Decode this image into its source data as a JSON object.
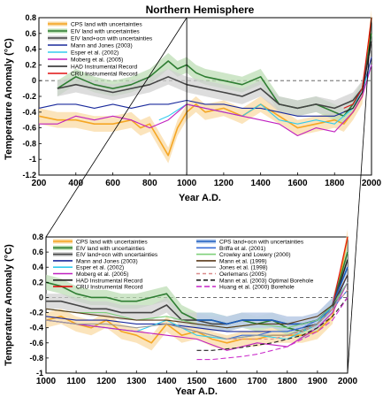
{
  "chart_data": [
    {
      "type": "line",
      "title": "Northern Hemisphere",
      "xlabel": "Year A.D.",
      "ylabel": "Temperature Anomaly (°C)",
      "xlim": [
        200,
        2000
      ],
      "ylim": [
        -1.2,
        0.8
      ],
      "xticks": [
        "200",
        "400",
        "600",
        "800",
        "1000",
        "1200",
        "1400",
        "1600",
        "1800",
        "2000"
      ],
      "yticks": [
        "0.8",
        "0.6",
        "0.4",
        "0.2",
        "0",
        "-0.2",
        "-0.4",
        "-0.6",
        "-0.8",
        "-1",
        "-1.2"
      ],
      "legend_position": "top-left",
      "series": [
        {
          "name": "CPS land with uncertainties",
          "color": "#f5a623",
          "band": "#f9d9a0",
          "x": [
            200,
            300,
            400,
            500,
            600,
            700,
            750,
            800,
            850,
            900,
            950,
            1000,
            1050,
            1100,
            1200,
            1300,
            1400,
            1500,
            1600,
            1700,
            1800,
            1850,
            1900,
            1950,
            2000
          ],
          "y": [
            -0.45,
            -0.5,
            -0.5,
            -0.55,
            -0.55,
            -0.5,
            -0.6,
            -0.55,
            -0.75,
            -0.95,
            -0.6,
            -0.4,
            -0.3,
            -0.4,
            -0.35,
            -0.45,
            -0.3,
            -0.45,
            -0.6,
            -0.55,
            -0.5,
            -0.55,
            -0.4,
            -0.2,
            0.8
          ]
        },
        {
          "name": "EIV land with uncertainties",
          "color": "#2e7d32",
          "band": "#b9dcb0",
          "x": [
            300,
            400,
            500,
            600,
            700,
            800,
            900,
            950,
            1000,
            1050,
            1100,
            1200,
            1300,
            1400,
            1500,
            1600,
            1700,
            1800,
            1850,
            1900,
            1950,
            2000
          ],
          "y": [
            -0.1,
            0.05,
            -0.05,
            -0.1,
            -0.05,
            0.05,
            0.25,
            0.15,
            0.2,
            0.1,
            0.05,
            0.0,
            -0.05,
            0.05,
            -0.3,
            -0.35,
            -0.3,
            -0.4,
            -0.45,
            -0.3,
            -0.1,
            0.6
          ]
        },
        {
          "name": "EIV land+ocn with uncertainties",
          "color": "#444444",
          "band": "#cfcfcf",
          "x": [
            300,
            400,
            500,
            600,
            700,
            800,
            900,
            1000,
            1100,
            1200,
            1300,
            1400,
            1500,
            1600,
            1700,
            1800,
            1900,
            1950,
            2000
          ],
          "y": [
            -0.1,
            -0.05,
            -0.1,
            -0.15,
            -0.1,
            -0.05,
            0.05,
            -0.05,
            -0.1,
            -0.15,
            -0.2,
            -0.1,
            -0.3,
            -0.35,
            -0.3,
            -0.35,
            -0.25,
            -0.1,
            0.5
          ]
        },
        {
          "name": "Mann and Jones (2003)",
          "color": "#1a2a9c",
          "x": [
            200,
            300,
            400,
            500,
            600,
            700,
            800,
            900,
            1000,
            1100,
            1200,
            1300,
            1400,
            1500,
            1600,
            1700,
            1800,
            1900,
            1950,
            2000
          ],
          "y": [
            -0.35,
            -0.3,
            -0.3,
            -0.35,
            -0.3,
            -0.35,
            -0.3,
            -0.3,
            -0.25,
            -0.3,
            -0.3,
            -0.35,
            -0.35,
            -0.4,
            -0.45,
            -0.45,
            -0.45,
            -0.35,
            -0.15,
            0.3
          ]
        },
        {
          "name": "Esper et al. (2002)",
          "color": "#33ccee",
          "x": [
            850,
            900,
            1000,
            1100,
            1200,
            1300,
            1400,
            1500,
            1600,
            1700,
            1800,
            1900,
            1950,
            2000
          ],
          "y": [
            -0.5,
            -0.45,
            -0.3,
            -0.35,
            -0.4,
            -0.45,
            -0.3,
            -0.5,
            -0.55,
            -0.5,
            -0.55,
            -0.35,
            -0.1,
            0.2
          ]
        },
        {
          "name": "Moberg et al. (2005)",
          "color": "#c020c0",
          "x": [
            200,
            300,
            400,
            500,
            600,
            700,
            800,
            900,
            1000,
            1100,
            1200,
            1300,
            1400,
            1500,
            1600,
            1700,
            1800,
            1900,
            1950,
            2000
          ],
          "y": [
            -0.55,
            -0.55,
            -0.45,
            -0.5,
            -0.45,
            -0.5,
            -0.6,
            -0.5,
            -0.3,
            -0.35,
            -0.4,
            -0.45,
            -0.5,
            -0.55,
            -0.7,
            -0.6,
            -0.65,
            -0.4,
            -0.2,
            0.2
          ]
        },
        {
          "name": "HAD Instrumental Record",
          "color": "#222222",
          "x": [
            1850,
            1900,
            1950,
            2000
          ],
          "y": [
            -0.4,
            -0.35,
            -0.15,
            0.5
          ]
        },
        {
          "name": "CRU Instrumental Record",
          "color": "#e01010",
          "x": [
            1850,
            1900,
            1950,
            2000
          ],
          "y": [
            -0.35,
            -0.3,
            -0.1,
            0.8
          ]
        }
      ]
    },
    {
      "type": "line",
      "xlabel": "Year A.D.",
      "ylabel": "Temperature Anomaly (°C)",
      "xlim": [
        1000,
        2000
      ],
      "ylim": [
        -1.0,
        0.8
      ],
      "xticks": [
        "1000",
        "1100",
        "1200",
        "1300",
        "1400",
        "1500",
        "1600",
        "1700",
        "1800",
        "1900",
        "2000"
      ],
      "yticks": [
        "0.8",
        "0.6",
        "0.4",
        "0.2",
        "0",
        "-0.2",
        "-0.4",
        "-0.6",
        "-0.8",
        "-1"
      ],
      "legend_position": "top",
      "series": [
        {
          "name": "CPS land with uncertainties",
          "color": "#f5a623",
          "band": "#f9d9a0",
          "x": [
            1000,
            1050,
            1100,
            1150,
            1200,
            1250,
            1300,
            1350,
            1400,
            1450,
            1500,
            1550,
            1600,
            1650,
            1700,
            1750,
            1800,
            1850,
            1900,
            1950,
            2000
          ],
          "y": [
            -0.3,
            -0.25,
            -0.35,
            -0.4,
            -0.3,
            -0.45,
            -0.5,
            -0.6,
            -0.35,
            -0.5,
            -0.45,
            -0.55,
            -0.6,
            -0.55,
            -0.55,
            -0.5,
            -0.5,
            -0.5,
            -0.45,
            -0.25,
            0.8
          ]
        },
        {
          "name": "EIV land with uncertainties",
          "color": "#2e7d32",
          "band": "#b9dcb0",
          "x": [
            1000,
            1050,
            1100,
            1150,
            1200,
            1250,
            1300,
            1350,
            1400,
            1450,
            1500,
            1550,
            1600,
            1650,
            1700,
            1750,
            1800,
            1850,
            1900,
            1950,
            2000
          ],
          "y": [
            0.2,
            0.15,
            0.05,
            0.0,
            0.0,
            -0.05,
            -0.05,
            0.0,
            0.05,
            -0.2,
            -0.3,
            -0.3,
            -0.35,
            -0.3,
            -0.35,
            -0.3,
            -0.4,
            -0.45,
            -0.35,
            -0.1,
            0.6
          ]
        },
        {
          "name": "EIV land+ocn with uncertainties",
          "color": "#444444",
          "band": "#cfcfcf",
          "x": [
            1000,
            1050,
            1100,
            1150,
            1200,
            1250,
            1300,
            1350,
            1400,
            1450,
            1500,
            1550,
            1600,
            1650,
            1700,
            1750,
            1800,
            1850,
            1900,
            1950,
            2000
          ],
          "y": [
            -0.05,
            -0.05,
            -0.1,
            -0.15,
            -0.15,
            -0.2,
            -0.2,
            -0.2,
            -0.1,
            -0.3,
            -0.3,
            -0.35,
            -0.35,
            -0.3,
            -0.3,
            -0.3,
            -0.35,
            -0.35,
            -0.3,
            -0.1,
            0.5
          ]
        },
        {
          "name": "Mann and Jones (2003)",
          "color": "#1a2a9c",
          "x": [
            1000,
            1100,
            1200,
            1300,
            1400,
            1500,
            1600,
            1700,
            1800,
            1900,
            1950,
            2000
          ],
          "y": [
            -0.25,
            -0.3,
            -0.3,
            -0.35,
            -0.35,
            -0.4,
            -0.45,
            -0.45,
            -0.45,
            -0.35,
            -0.15,
            0.3
          ]
        },
        {
          "name": "Esper et al. (2002)",
          "color": "#33ccee",
          "x": [
            1000,
            1100,
            1200,
            1300,
            1400,
            1500,
            1600,
            1700,
            1800,
            1900,
            1950,
            2000
          ],
          "y": [
            -0.3,
            -0.35,
            -0.4,
            -0.45,
            -0.3,
            -0.5,
            -0.55,
            -0.5,
            -0.55,
            -0.35,
            -0.1,
            0.2
          ]
        },
        {
          "name": "Moberg et al. (2005)",
          "color": "#c020c0",
          "x": [
            1000,
            1100,
            1200,
            1300,
            1400,
            1500,
            1600,
            1700,
            1800,
            1900,
            1950,
            2000
          ],
          "y": [
            -0.3,
            -0.35,
            -0.4,
            -0.45,
            -0.5,
            -0.55,
            -0.7,
            -0.6,
            -0.65,
            -0.4,
            -0.2,
            0.2
          ]
        },
        {
          "name": "HAD Instrumental Record",
          "color": "#222222",
          "x": [
            1850,
            1900,
            1950,
            2000
          ],
          "y": [
            -0.4,
            -0.35,
            -0.15,
            0.5
          ]
        },
        {
          "name": "CRU Instrumental Record",
          "color": "#e01010",
          "x": [
            1850,
            1900,
            1950,
            2000
          ],
          "y": [
            -0.35,
            -0.3,
            -0.1,
            0.8
          ]
        },
        {
          "name": "CPS land+ocn with uncertainties",
          "color": "#1f5fbf",
          "band": "#b8cdee",
          "x": [
            1500,
            1550,
            1600,
            1650,
            1700,
            1750,
            1800,
            1850,
            1900,
            1950,
            2000
          ],
          "y": [
            -0.3,
            -0.3,
            -0.35,
            -0.3,
            -0.3,
            -0.3,
            -0.35,
            -0.35,
            -0.3,
            -0.1,
            0.4
          ]
        },
        {
          "name": "Briffa et al. (2001)",
          "color": "#3a6ed8",
          "x": [
            1400,
            1450,
            1500,
            1550,
            1600,
            1650,
            1700,
            1750,
            1800,
            1850,
            1900,
            1950,
            2000
          ],
          "y": [
            -0.35,
            -0.4,
            -0.45,
            -0.5,
            -0.55,
            -0.5,
            -0.5,
            -0.45,
            -0.45,
            -0.4,
            -0.3,
            -0.15,
            0.1
          ]
        },
        {
          "name": "Crowley and Lowery (2000)",
          "color": "#7fd07a",
          "x": [
            1000,
            1100,
            1200,
            1300,
            1400,
            1500,
            1600,
            1700,
            1800,
            1900,
            1950,
            2000
          ],
          "y": [
            -0.15,
            -0.2,
            -0.2,
            -0.3,
            -0.25,
            -0.35,
            -0.4,
            -0.35,
            -0.4,
            -0.3,
            -0.1,
            0.2
          ]
        },
        {
          "name": "Mann et al. (1999)",
          "color": "#5a3a1a",
          "x": [
            1000,
            1100,
            1200,
            1300,
            1400,
            1500,
            1600,
            1700,
            1800,
            1900,
            1950,
            2000
          ],
          "y": [
            -0.15,
            -0.2,
            -0.25,
            -0.3,
            -0.3,
            -0.35,
            -0.4,
            -0.35,
            -0.35,
            -0.25,
            -0.1,
            0.3
          ]
        },
        {
          "name": "Jones et al. (1998)",
          "color": "#9a9a9a",
          "x": [
            1000,
            1100,
            1200,
            1300,
            1400,
            1500,
            1600,
            1700,
            1800,
            1900,
            1950,
            2000
          ],
          "y": [
            -0.3,
            -0.35,
            -0.35,
            -0.4,
            -0.35,
            -0.45,
            -0.55,
            -0.5,
            -0.5,
            -0.35,
            -0.15,
            0.2
          ]
        },
        {
          "name": "Oerlemans (2005)",
          "color": "#d98a8a",
          "dash": "4,3",
          "x": [
            1600,
            1650,
            1700,
            1750,
            1800,
            1850,
            1900,
            1950,
            2000
          ],
          "y": [
            -0.55,
            -0.55,
            -0.55,
            -0.55,
            -0.5,
            -0.45,
            -0.35,
            -0.15,
            0.1
          ]
        },
        {
          "name": "Mann et al. (2003) Optimal Borehole",
          "color": "#222222",
          "dash": "5,3",
          "x": [
            1500,
            1550,
            1600,
            1650,
            1700,
            1750,
            1800,
            1850,
            1900,
            1950,
            2000
          ],
          "y": [
            -0.7,
            -0.7,
            -0.68,
            -0.66,
            -0.63,
            -0.6,
            -0.55,
            -0.5,
            -0.4,
            -0.25,
            0.0
          ]
        },
        {
          "name": "Huang et al. (2000) Borehole",
          "color": "#cc33cc",
          "dash": "6,3",
          "x": [
            1500,
            1550,
            1600,
            1650,
            1700,
            1750,
            1800,
            1850,
            1900,
            1950,
            2000
          ],
          "y": [
            -0.82,
            -0.82,
            -0.8,
            -0.78,
            -0.75,
            -0.7,
            -0.65,
            -0.55,
            -0.45,
            -0.3,
            0.0
          ]
        }
      ]
    }
  ]
}
